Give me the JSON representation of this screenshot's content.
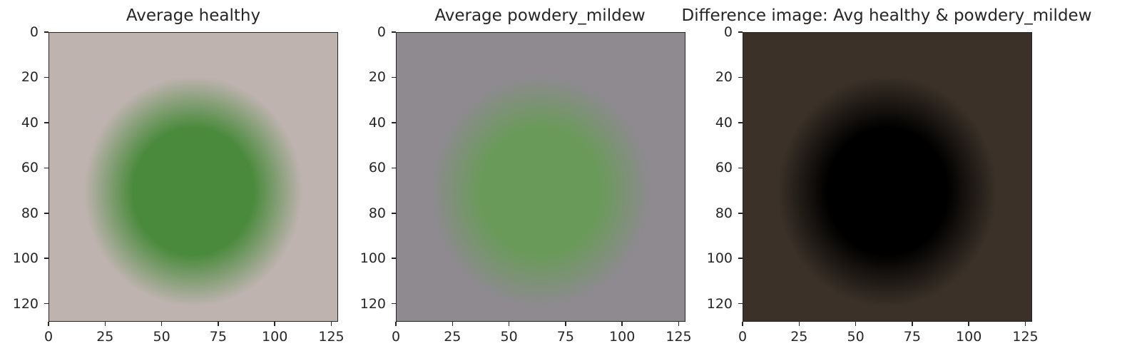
{
  "chart_data": [
    {
      "type": "image",
      "title": "Average healthy",
      "xlim": [
        0,
        128
      ],
      "ylim": [
        128,
        0
      ],
      "xticks": [
        "0",
        "25",
        "50",
        "75",
        "100",
        "125"
      ],
      "yticks": [
        "0",
        "20",
        "40",
        "60",
        "80",
        "100",
        "120"
      ],
      "xtick_values": [
        0,
        25,
        50,
        75,
        100,
        125
      ],
      "ytick_values": [
        0,
        20,
        40,
        60,
        80,
        100,
        120
      ],
      "background_color": "#bfb3b0",
      "center_color": "#4a8a3c"
    },
    {
      "type": "image",
      "title": "Average powdery_mildew",
      "xlim": [
        0,
        128
      ],
      "ylim": [
        128,
        0
      ],
      "xticks": [
        "0",
        "25",
        "50",
        "75",
        "100",
        "125"
      ],
      "yticks": [
        "0",
        "20",
        "40",
        "60",
        "80",
        "100",
        "120"
      ],
      "xtick_values": [
        0,
        25,
        50,
        75,
        100,
        125
      ],
      "ytick_values": [
        0,
        20,
        40,
        60,
        80,
        100,
        120
      ],
      "background_color": "#8e8a90",
      "center_color": "#6a9a5a"
    },
    {
      "type": "image",
      "title": "Difference image: Avg healthy & powdery_mildew",
      "xlim": [
        0,
        128
      ],
      "ylim": [
        128,
        0
      ],
      "xticks": [
        "0",
        "25",
        "50",
        "75",
        "100",
        "125"
      ],
      "yticks": [
        "0",
        "20",
        "40",
        "60",
        "80",
        "100",
        "120"
      ],
      "xtick_values": [
        0,
        25,
        50,
        75,
        100,
        125
      ],
      "ytick_values": [
        0,
        20,
        40,
        60,
        80,
        100,
        120
      ],
      "background_color": "#3b3128",
      "center_color": "#000000"
    }
  ]
}
